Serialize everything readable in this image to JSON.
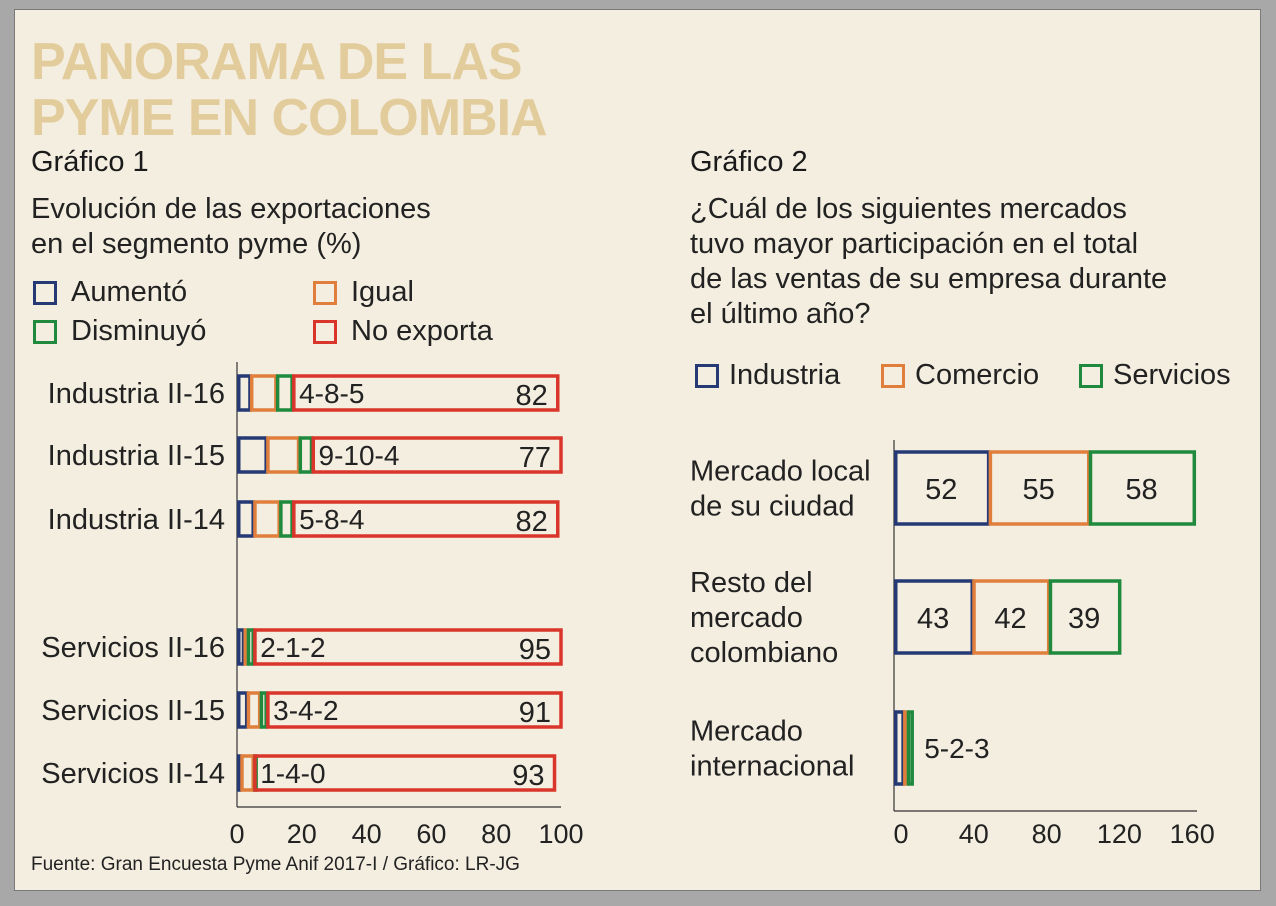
{
  "title_line1": "PANORAMA DE LAS",
  "title_line2": "PYME EN COLOMBIA",
  "source": "Fuente: Gran Encuesta Pyme Anif 2017-I / Gráfico: LR-JG",
  "colors": {
    "navy": "#253a74",
    "orange": "#e07f3c",
    "green": "#1f8a3e",
    "red": "#d9352b",
    "title": "#e3cc9c"
  },
  "chart_data": [
    {
      "type": "bar",
      "stacked": true,
      "orientation": "horizontal",
      "header": "Gráfico 1",
      "title_line1": "Evolución de las exportaciones",
      "title_line2": "en el segmento pyme (%)",
      "legend": [
        "Aumentó",
        "Igual",
        "Disminuyó",
        "No exporta"
      ],
      "xlim": [
        0,
        100
      ],
      "xticks": [
        "0",
        "20",
        "40",
        "60",
        "80",
        "100"
      ],
      "grid": false,
      "categories": [
        "Industria II-16",
        "Industria II-15",
        "Industria II-14",
        "Servicios II-16",
        "Servicios II-15",
        "Servicios II-14"
      ],
      "series": [
        {
          "name": "Aumentó",
          "values": [
            4,
            9,
            5,
            2,
            3,
            1
          ]
        },
        {
          "name": "Igual",
          "values": [
            8,
            10,
            8,
            1,
            4,
            4
          ]
        },
        {
          "name": "Disminuyó",
          "values": [
            5,
            4,
            4,
            2,
            2,
            0
          ]
        },
        {
          "name": "No exporta",
          "values": [
            82,
            77,
            82,
            95,
            91,
            93
          ]
        }
      ],
      "small_labels": [
        "4-8-5",
        "9-10-4",
        "5-8-4",
        "2-1-2",
        "3-4-2",
        "1-4-0"
      ],
      "big_labels": [
        "82",
        "77",
        "82",
        "95",
        "91",
        "93"
      ]
    },
    {
      "type": "bar",
      "stacked": true,
      "orientation": "horizontal",
      "header": "Gráfico 2",
      "title_lines": [
        "¿Cuál de los siguientes mercados",
        "tuvo mayor participación en el total",
        "de las ventas de su empresa durante",
        "el último año?"
      ],
      "legend": [
        "Industria",
        "Comercio",
        "Servicios"
      ],
      "xlim": [
        0,
        160
      ],
      "xticks": [
        "0",
        "40",
        "80",
        "120",
        "160"
      ],
      "grid": false,
      "categories": [
        [
          "Mercado local",
          "de su ciudad"
        ],
        [
          "Resto del",
          "mercado",
          "colombiano"
        ],
        [
          "Mercado",
          "internacional"
        ]
      ],
      "series": [
        {
          "name": "Industria",
          "values": [
            52,
            43,
            5
          ]
        },
        {
          "name": "Comercio",
          "values": [
            55,
            42,
            2
          ]
        },
        {
          "name": "Servicios",
          "values": [
            58,
            39,
            3
          ]
        }
      ],
      "segment_labels": [
        [
          "52",
          "55",
          "58"
        ],
        [
          "43",
          "42",
          "39"
        ],
        []
      ],
      "outside_labels": [
        "",
        "",
        "5-2-3"
      ]
    }
  ]
}
